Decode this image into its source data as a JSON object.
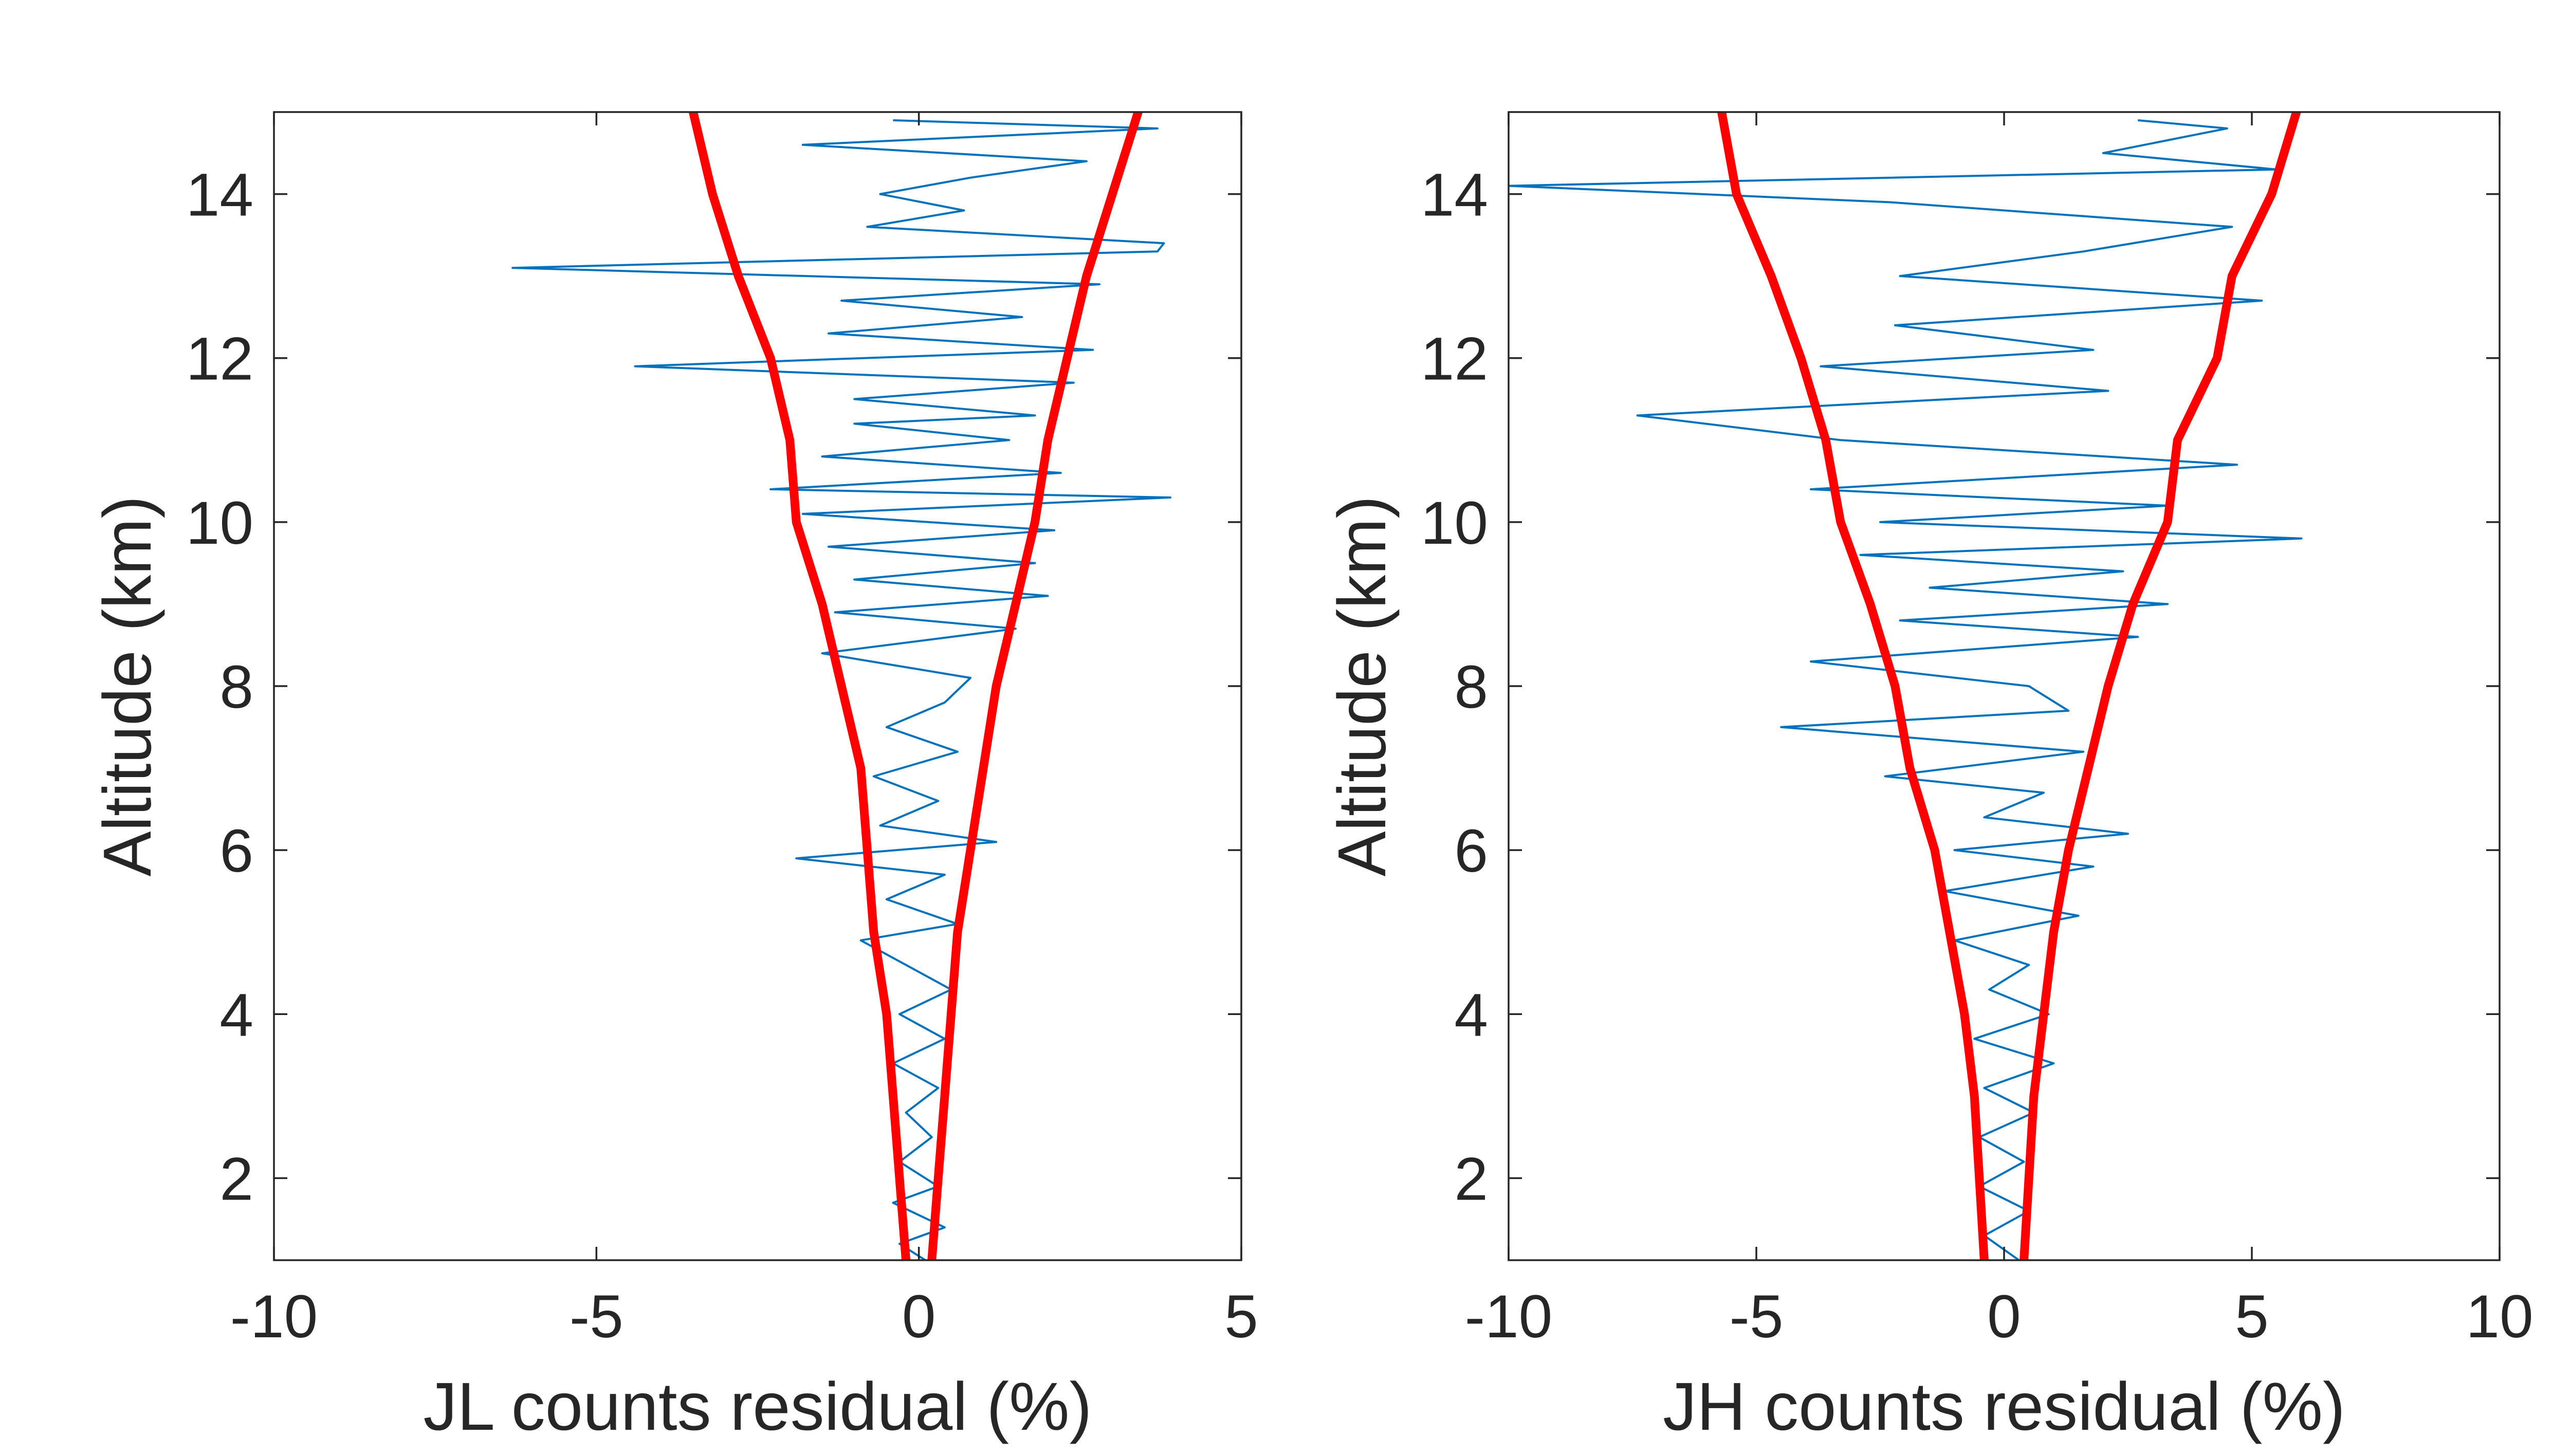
{
  "colors": {
    "residual": "#0072BD",
    "bound": "#FF0000",
    "axes": "#262626",
    "background": "#FFFFFF"
  },
  "chart_data": [
    {
      "type": "line",
      "xlabel": "JL counts residual (%)",
      "ylabel": "Altitude (km)",
      "xlim": [
        -10,
        5
      ],
      "ylim": [
        1,
        15
      ],
      "xticks": [
        -10,
        -5,
        0,
        5
      ],
      "xtick_labels": [
        "-10",
        "-5",
        "0",
        "5"
      ],
      "yticks": [
        2,
        4,
        6,
        8,
        10,
        12,
        14
      ],
      "ytick_labels": [
        "2",
        "4",
        "6",
        "8",
        "10",
        "12",
        "14"
      ],
      "grid": false,
      "series": [
        {
          "role": "residual",
          "y": [
            1.0,
            1.2,
            1.4,
            1.7,
            1.9,
            2.2,
            2.5,
            2.8,
            3.1,
            3.4,
            3.7,
            4.0,
            4.3,
            4.6,
            4.9,
            5.1,
            5.4,
            5.7,
            5.9,
            6.1,
            6.3,
            6.6,
            6.9,
            7.2,
            7.5,
            7.8,
            8.1,
            8.4,
            8.7,
            8.9,
            9.1,
            9.3,
            9.5,
            9.7,
            9.9,
            10.1,
            10.3,
            10.4,
            10.6,
            10.8,
            11.0,
            11.2,
            11.3,
            11.5,
            11.7,
            11.9,
            12.1,
            12.3,
            12.5,
            12.7,
            12.9,
            13.1,
            13.3,
            13.4,
            13.6,
            13.8,
            14.0,
            14.2,
            14.4,
            14.6,
            14.8,
            14.9
          ],
          "x": [
            0.1,
            -0.3,
            0.4,
            -0.4,
            0.3,
            -0.3,
            0.2,
            -0.2,
            0.3,
            -0.4,
            0.4,
            -0.3,
            0.5,
            -0.2,
            -0.9,
            0.6,
            -0.5,
            0.4,
            -1.9,
            1.2,
            -0.6,
            0.3,
            -0.7,
            0.6,
            -0.5,
            0.4,
            0.8,
            -1.5,
            1.5,
            -1.3,
            2.0,
            -1.0,
            1.8,
            -1.4,
            2.1,
            -1.8,
            3.9,
            -2.3,
            2.2,
            -1.5,
            1.4,
            -1.0,
            1.8,
            -1.0,
            2.4,
            -4.4,
            2.7,
            -1.4,
            1.6,
            -1.2,
            2.8,
            -6.3,
            3.7,
            3.8,
            -0.8,
            0.7,
            -0.6,
            0.8,
            2.6,
            -1.8,
            3.7,
            -0.4
          ]
        },
        {
          "role": "lower-bound",
          "y": [
            1,
            2,
            3,
            4,
            5,
            6,
            7,
            8,
            9,
            10,
            11,
            12,
            13,
            14,
            15
          ],
          "x": [
            -0.2,
            -0.3,
            -0.4,
            -0.5,
            -0.7,
            -0.8,
            -0.9,
            -1.2,
            -1.5,
            -1.9,
            -2.0,
            -2.3,
            -2.8,
            -3.2,
            -3.5
          ]
        },
        {
          "role": "upper-bound",
          "y": [
            1,
            2,
            3,
            4,
            5,
            6,
            7,
            8,
            9,
            10,
            11,
            12,
            13,
            14,
            15
          ],
          "x": [
            0.2,
            0.3,
            0.4,
            0.5,
            0.6,
            0.8,
            1.0,
            1.2,
            1.5,
            1.8,
            2.0,
            2.3,
            2.6,
            3.0,
            3.4
          ]
        }
      ]
    },
    {
      "type": "line",
      "xlabel": "JH counts residual (%)",
      "ylabel": "Altitude (km)",
      "xlim": [
        -10,
        10
      ],
      "ylim": [
        1,
        15
      ],
      "xticks": [
        -10,
        -5,
        0,
        5,
        10
      ],
      "xtick_labels": [
        "-10",
        "-5",
        "0",
        "5",
        "10"
      ],
      "yticks": [
        2,
        4,
        6,
        8,
        10,
        12,
        14
      ],
      "ytick_labels": [
        "2",
        "4",
        "6",
        "8",
        "10",
        "12",
        "14"
      ],
      "grid": false,
      "series": [
        {
          "role": "residual",
          "y": [
            1.0,
            1.3,
            1.6,
            1.9,
            2.2,
            2.5,
            2.8,
            3.1,
            3.4,
            3.7,
            4.0,
            4.3,
            4.6,
            4.9,
            5.2,
            5.5,
            5.8,
            6.0,
            6.2,
            6.4,
            6.7,
            6.9,
            7.2,
            7.5,
            7.7,
            8.0,
            8.3,
            8.6,
            8.8,
            9.0,
            9.2,
            9.4,
            9.6,
            9.8,
            10.0,
            10.2,
            10.4,
            10.7,
            11.0,
            11.3,
            11.6,
            11.9,
            12.1,
            12.4,
            12.7,
            13.0,
            13.3,
            13.6,
            13.9,
            14.1,
            14.3,
            14.5,
            14.8,
            14.9
          ],
          "x": [
            0.3,
            -0.4,
            0.5,
            -0.5,
            0.4,
            -0.5,
            0.6,
            -0.4,
            1.0,
            -0.6,
            0.9,
            -0.3,
            0.5,
            -1.0,
            1.5,
            -1.2,
            1.8,
            -1.0,
            2.5,
            -0.4,
            0.8,
            -2.4,
            1.6,
            -4.5,
            1.3,
            0.5,
            -3.9,
            2.7,
            -2.1,
            3.3,
            -1.5,
            2.4,
            -2.9,
            6.0,
            -2.5,
            3.3,
            -3.9,
            4.7,
            -3.3,
            -7.4,
            2.1,
            -3.7,
            1.8,
            -2.2,
            5.2,
            -2.1,
            1.6,
            4.6,
            -2.3,
            -10.0,
            5.5,
            2.0,
            4.5,
            2.7
          ]
        },
        {
          "role": "lower-bound",
          "y": [
            1,
            2,
            3,
            4,
            5,
            6,
            7,
            8,
            9,
            10,
            11,
            12,
            13,
            14,
            15
          ],
          "x": [
            -0.4,
            -0.5,
            -0.6,
            -0.8,
            -1.1,
            -1.4,
            -1.9,
            -2.2,
            -2.7,
            -3.3,
            -3.6,
            -4.1,
            -4.7,
            -5.4,
            -5.7
          ]
        },
        {
          "role": "upper-bound",
          "y": [
            1,
            2,
            3,
            4,
            5,
            6,
            7,
            8,
            9,
            10,
            11,
            12,
            13,
            14,
            15
          ],
          "x": [
            0.4,
            0.5,
            0.6,
            0.8,
            1.0,
            1.3,
            1.7,
            2.1,
            2.6,
            3.3,
            3.5,
            4.3,
            4.6,
            5.4,
            5.9
          ]
        }
      ]
    }
  ]
}
